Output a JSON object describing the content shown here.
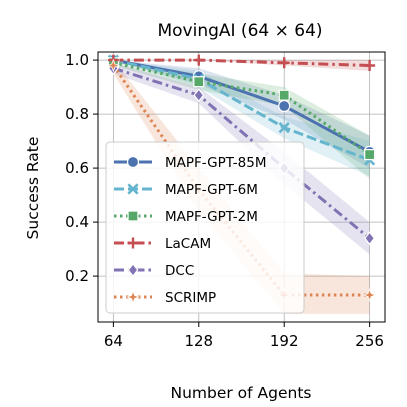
{
  "chart_data": {
    "type": "line",
    "title": "MovingAI (64 × 64)",
    "xlabel": "Number of Agents",
    "ylabel": "Success Rate",
    "x": [
      64,
      128,
      192,
      256
    ],
    "xticks": [
      "64",
      "128",
      "192",
      "256"
    ],
    "yticks": [
      "0.2",
      "0.4",
      "0.6",
      "0.8",
      "1.0"
    ],
    "ylim": [
      0.03,
      1.03
    ],
    "grid": true,
    "legend_position": "lower-left",
    "series": [
      {
        "name": "MAPF-GPT-85M",
        "color": "#4c72b0",
        "dash": "solid",
        "marker": "circle",
        "values": [
          1.0,
          0.94,
          0.83,
          0.66
        ],
        "band": [
          [
            1.0,
            1.0
          ],
          [
            0.97,
            0.91
          ],
          [
            0.87,
            0.78
          ],
          [
            0.72,
            0.6
          ]
        ]
      },
      {
        "name": "MAPF-GPT-6M",
        "color": "#64b5cd",
        "dash": "dashed",
        "marker": "x",
        "values": [
          1.0,
          0.93,
          0.75,
          0.63
        ],
        "band": [
          [
            1.0,
            1.0
          ],
          [
            0.96,
            0.9
          ],
          [
            0.79,
            0.71
          ],
          [
            0.7,
            0.57
          ]
        ]
      },
      {
        "name": "MAPF-GPT-2M",
        "color": "#55a868",
        "dash": "dotted",
        "marker": "square",
        "values": [
          0.99,
          0.92,
          0.87,
          0.65
        ],
        "band": [
          [
            1.0,
            0.98
          ],
          [
            0.95,
            0.89
          ],
          [
            0.9,
            0.83
          ],
          [
            0.72,
            0.56
          ]
        ]
      },
      {
        "name": "LaCAM",
        "color": "#c44e52",
        "dash": "dashdot",
        "marker": "plus",
        "values": [
          1.0,
          1.0,
          0.99,
          0.98
        ],
        "band": [
          [
            1.0,
            1.0
          ],
          [
            1.0,
            1.0
          ],
          [
            1.0,
            0.98
          ],
          [
            1.0,
            0.96
          ]
        ]
      },
      {
        "name": "DCC",
        "color": "#8172b3",
        "dash": "dashdot",
        "marker": "diamond",
        "values": [
          0.97,
          0.87,
          0.6,
          0.34
        ],
        "band": [
          [
            0.99,
            0.95
          ],
          [
            0.9,
            0.84
          ],
          [
            0.66,
            0.54
          ],
          [
            0.4,
            0.28
          ]
        ]
      },
      {
        "name": "SCRIMP",
        "color": "#dd8452",
        "dash": "dotted",
        "marker": "star",
        "values": [
          0.98,
          0.52,
          0.13,
          0.13
        ],
        "band": [
          [
            1.0,
            0.95
          ],
          [
            0.6,
            0.44
          ],
          [
            0.21,
            0.06
          ],
          [
            0.2,
            0.06
          ]
        ]
      }
    ]
  }
}
